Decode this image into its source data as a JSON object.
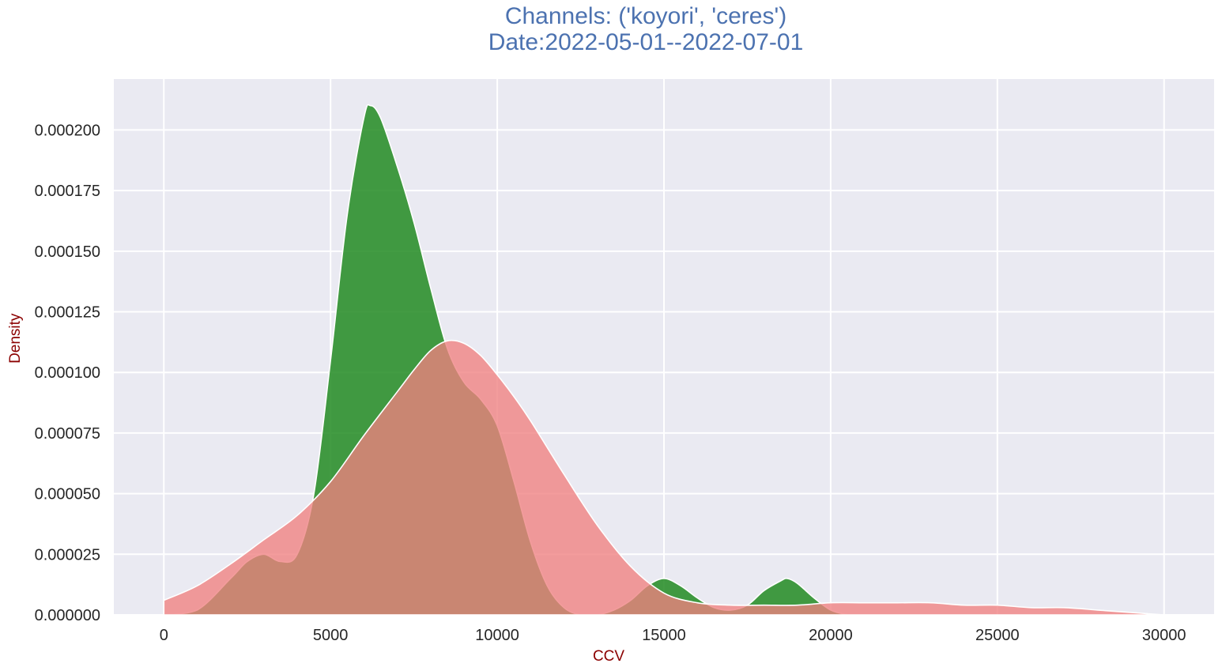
{
  "chart_data": {
    "type": "area",
    "title": "Channels: ('koyori', 'ceres')",
    "subtitle": "Date:2022-05-01--2022-07-01",
    "xlabel": "CCV",
    "ylabel": "Density",
    "xlim": [
      -1500,
      31500
    ],
    "ylim": [
      0,
      0.000221
    ],
    "x_ticks": [
      0,
      5000,
      10000,
      15000,
      20000,
      25000,
      30000
    ],
    "x_tick_labels": [
      "0",
      "5000",
      "10000",
      "15000",
      "20000",
      "25000",
      "30000"
    ],
    "y_ticks": [
      0,
      2.5e-05,
      5e-05,
      7.5e-05,
      0.0001,
      0.000125,
      0.00015,
      0.000175,
      0.0002
    ],
    "y_tick_labels": [
      "0.000000",
      "0.000025",
      "0.000050",
      "0.000075",
      "0.000100",
      "0.000125",
      "0.000150",
      "0.000175",
      "0.000200"
    ],
    "grid": true,
    "legend": "none",
    "series": [
      {
        "color": "#228b22",
        "x": [
          0,
          1000,
          2000,
          2500,
          3000,
          3500,
          4000,
          4500,
          5000,
          5500,
          6000,
          6200,
          6500,
          7000,
          7500,
          8000,
          8500,
          9000,
          9500,
          10000,
          10500,
          11000,
          11500,
          12000,
          12500,
          13000,
          13500,
          14000,
          14500,
          15000,
          15500,
          16000,
          16500,
          17000,
          17500,
          18000,
          18500,
          18700,
          19000,
          19500,
          20000,
          20500
        ],
        "y": [
          0,
          2e-06,
          1.5e-05,
          2.2e-05,
          2.5e-05,
          2.2e-05,
          2.5e-05,
          5e-05,
          0.000105,
          0.000165,
          0.000205,
          0.00021,
          0.000205,
          0.000185,
          0.000162,
          0.000135,
          0.00011,
          9.6e-05,
          8.9e-05,
          7.8e-05,
          5.5e-05,
          3e-05,
          1.2e-05,
          3e-06,
          0,
          0,
          2e-06,
          6e-06,
          1.2e-05,
          1.5e-05,
          1.2e-05,
          7e-06,
          3e-06,
          2e-06,
          4e-06,
          1e-05,
          1.4e-05,
          1.5e-05,
          1.3e-05,
          7e-06,
          2e-06,
          0
        ]
      },
      {
        "color": "#f08080",
        "x": [
          0,
          1000,
          2000,
          3000,
          4000,
          5000,
          6000,
          7000,
          7500,
          8000,
          8500,
          9000,
          9500,
          10000,
          10500,
          11000,
          12000,
          13000,
          14000,
          15000,
          16000,
          17000,
          18000,
          19000,
          20000,
          21000,
          22000,
          23000,
          24000,
          25000,
          26000,
          27000,
          28000,
          29000,
          30000
        ],
        "y": [
          6e-06,
          1.2e-05,
          2.1e-05,
          3.1e-05,
          4.1e-05,
          5.5e-05,
          7.4e-05,
          9.2e-05,
          0.000101,
          0.000109,
          0.000113,
          0.000112,
          0.000107,
          9.9e-05,
          9e-05,
          8e-05,
          5.8e-05,
          3.7e-05,
          2e-05,
          9e-06,
          5e-06,
          4e-06,
          4e-06,
          4e-06,
          5e-06,
          5e-06,
          5e-06,
          5e-06,
          4e-06,
          4e-06,
          3e-06,
          3e-06,
          2e-06,
          1e-06,
          0
        ]
      }
    ]
  }
}
